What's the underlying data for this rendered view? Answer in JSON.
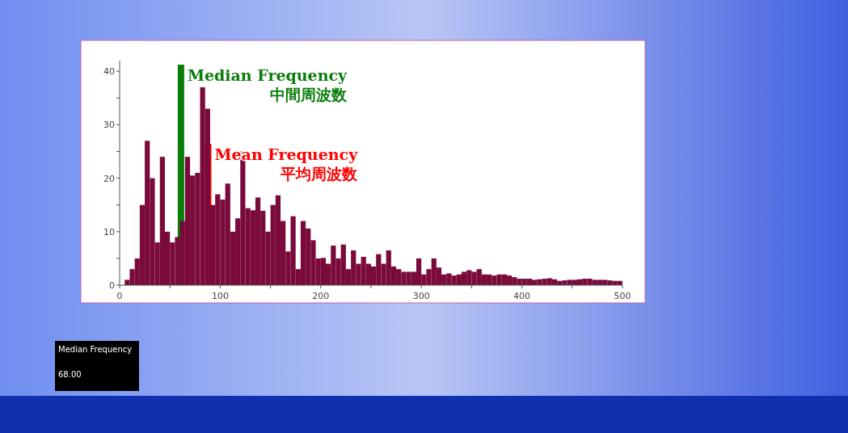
{
  "chart_data": {
    "type": "histogram",
    "bins": [
      0,
      5,
      10,
      15,
      20,
      25,
      30,
      35,
      40,
      45,
      50,
      55,
      60,
      65,
      70,
      75,
      80,
      85,
      90,
      95,
      100,
      105,
      110,
      115,
      120,
      125,
      130,
      135,
      140,
      145,
      150,
      155,
      160,
      165,
      170,
      175,
      180,
      185,
      190,
      195,
      200,
      205,
      210,
      215,
      220,
      225,
      230,
      235,
      240,
      245,
      250,
      255,
      260,
      265,
      270,
      275,
      280,
      285,
      290,
      295,
      300,
      305,
      310,
      315,
      320,
      325,
      330,
      335,
      340,
      345,
      350,
      355,
      360,
      365,
      370,
      375,
      380,
      385,
      390,
      395,
      400,
      405,
      410,
      415,
      420,
      425,
      430,
      435,
      440,
      445,
      450,
      455,
      460,
      465,
      470,
      475,
      480,
      485,
      490,
      495,
      500
    ],
    "values": [
      0,
      1,
      3,
      5,
      15,
      27,
      20,
      8,
      24,
      10,
      8,
      9,
      12,
      24,
      20.5,
      21,
      37,
      33,
      15,
      17,
      16,
      19,
      10,
      12.5,
      25,
      14.4,
      14,
      16.4,
      13.9,
      10,
      15,
      16.8,
      12,
      6.3,
      12.9,
      3,
      12,
      10.6,
      8.4,
      5,
      5.1,
      4,
      7.4,
      5,
      7.6,
      3,
      6.5,
      4,
      5.3,
      4,
      3.5,
      5.8,
      4,
      6.5,
      3.5,
      3,
      2.5,
      2.5,
      2.5,
      5,
      2,
      3,
      5,
      3.3,
      2,
      2.2,
      1.8,
      2,
      2.5,
      2.8,
      2.5,
      3,
      2,
      2,
      1.8,
      2,
      2,
      1.8,
      1.5,
      1.2,
      1.2,
      1.2,
      1,
      1.1,
      1.2,
      1.3,
      1.1,
      0.8,
      0.9,
      1,
      1,
      1.1,
      1.2,
      1.2,
      1,
      1,
      1,
      0.9,
      0.8,
      0.8
    ],
    "color": "#7a0a3c",
    "xlim": [
      0,
      500
    ],
    "ylim": [
      0,
      42
    ],
    "xticks": [
      0,
      {
        "value": 50,
        "label": null
      },
      100,
      {
        "value": 150,
        "label": null
      },
      200,
      {
        "value": 250,
        "label": null
      },
      300,
      {
        "value": 350,
        "label": null
      },
      400,
      {
        "value": 450,
        "label": null
      },
      500
    ],
    "yticks": [
      0,
      {
        "value": 5,
        "label": null
      },
      10,
      {
        "value": 15,
        "label": null
      },
      20,
      {
        "value": 25,
        "label": null
      },
      30,
      {
        "value": 35,
        "label": null
      },
      40
    ],
    "ref_lines": [
      {
        "axis": "x",
        "value": 61,
        "label": "Median Frequency\n中間周波数",
        "color": "#0a7d0a"
      },
      {
        "axis": "x",
        "value": 88,
        "label": "Mean Frequency\n平均周波数",
        "color": "#ff0000"
      }
    ],
    "annotations": [
      "Median Frequency",
      "68.00"
    ],
    "grid": false
  }
}
